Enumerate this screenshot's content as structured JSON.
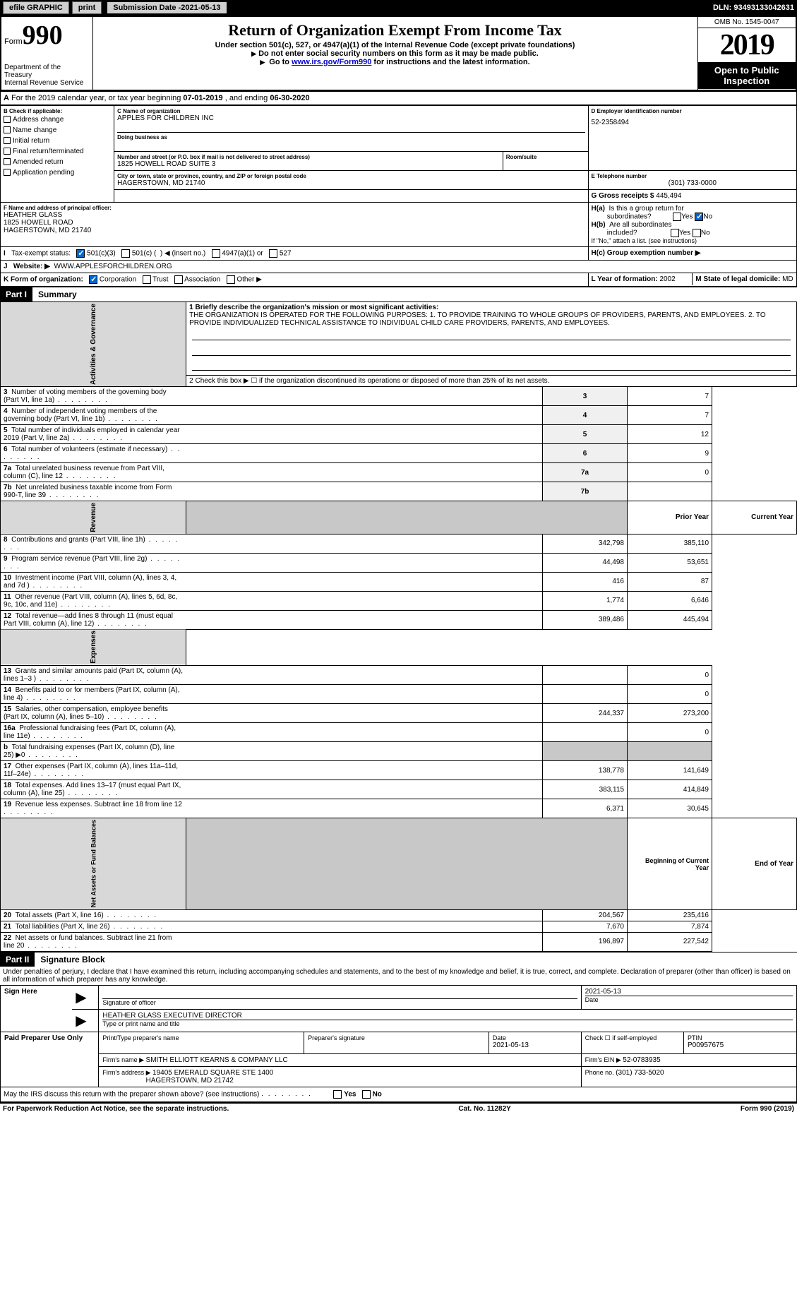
{
  "topbar": {
    "efile": "efile GRAPHIC",
    "print": "print",
    "subdate_lbl": "Submission Date - ",
    "subdate": "2021-05-13",
    "dln_lbl": "DLN: ",
    "dln": "93493133042631"
  },
  "header": {
    "form_lbl": "Form",
    "form_num": "990",
    "dept": "Department of the Treasury\nInternal Revenue Service",
    "title": "Return of Organization Exempt From Income Tax",
    "subtitle": "Under section 501(c), 527, or 4947(a)(1) of the Internal Revenue Code (except private foundations)",
    "instr1": "Do not enter social security numbers on this form as it may be made public.",
    "instr2_pre": "Go to ",
    "instr2_link": "www.irs.gov/Form990",
    "instr2_post": " for instructions and the latest information.",
    "omb": "OMB No. 1545-0047",
    "year": "2019",
    "otp": "Open to Public Inspection"
  },
  "period": {
    "a_pre": "For the 2019 calendar year, or tax year beginning ",
    "begin": "07-01-2019",
    "mid": " , and ending ",
    "end": "06-30-2020"
  },
  "sectionB": {
    "b_lbl": "B Check if applicable:",
    "b_opts": [
      "Address change",
      "Name change",
      "Initial return",
      "Final return/terminated",
      "Amended return",
      "Application pending"
    ],
    "c_lbl": "C Name of organization",
    "c_val": "APPLES FOR CHILDREN INC",
    "dba_lbl": "Doing business as",
    "addr_lbl": "Number and street (or P.O. box if mail is not delivered to street address)",
    "addr_val": "1825 HOWELL ROAD SUITE 3",
    "room_lbl": "Room/suite",
    "city_lbl": "City or town, state or province, country, and ZIP or foreign postal code",
    "city_val": "HAGERSTOWN, MD  21740",
    "d_lbl": "D Employer identification number",
    "d_val": "52-2358494",
    "e_lbl": "E Telephone number",
    "e_val": "(301) 733-0000",
    "g_lbl": "G Gross receipts $ ",
    "g_val": "445,494",
    "f_lbl": "F  Name and address of principal officer:",
    "f_name": "HEATHER GLASS",
    "f_addr1": "1825 HOWELL ROAD",
    "f_addr2": "HAGERSTOWN, MD  21740",
    "ha_lbl": "H(a)  Is this a group return for subordinates?",
    "hb_lbl": "H(b)  Are all subordinates included?",
    "hb_note": "If \"No,\" attach a list. (see instructions)",
    "hc_lbl": "H(c)  Group exemption number ▶",
    "yes": "Yes",
    "no": "No",
    "i_lbl": "Tax-exempt status:",
    "i_opts": [
      "501(c)(3)",
      "501(c) (  ) ◀ (insert no.)",
      "4947(a)(1) or",
      "527"
    ],
    "j_lbl": "Website: ▶",
    "j_val": "WWW.APPLESFORCHILDREN.ORG",
    "k_lbl": "K Form of organization:",
    "k_opts": [
      "Corporation",
      "Trust",
      "Association",
      "Other ▶"
    ],
    "l_lbl": "L Year of formation: ",
    "l_val": "2002",
    "m_lbl": "M State of legal domicile: ",
    "m_val": "MD"
  },
  "part1": {
    "hdr": "Part I",
    "title": "Summary",
    "sec_ag": "Activities & Governance",
    "sec_rev": "Revenue",
    "sec_exp": "Expenses",
    "sec_na": "Net Assets or Fund Balances",
    "l1_lbl": "1  Briefly describe the organization's mission or most significant activities:",
    "l1_val": "THE ORGANIZATION IS OPERATED FOR THE FOLLOWING PURPOSES: 1. TO PROVIDE TRAINING TO WHOLE GROUPS OF PROVIDERS, PARENTS, AND EMPLOYEES. 2. TO PROVIDE INDIVIDUALIZED TECHNICAL ASSISTANCE TO INDIVIDUAL CHILD CARE PROVIDERS, PARENTS, AND EMPLOYEES.",
    "l2": "2   Check this box ▶ ☐  if the organization discontinued its operations or disposed of more than 25% of its net assets.",
    "rows_ag": [
      {
        "n": "3",
        "t": "Number of voting members of the governing body (Part VI, line 1a)",
        "v": "7"
      },
      {
        "n": "4",
        "t": "Number of independent voting members of the governing body (Part VI, line 1b)",
        "v": "7"
      },
      {
        "n": "5",
        "t": "Total number of individuals employed in calendar year 2019 (Part V, line 2a)",
        "v": "12"
      },
      {
        "n": "6",
        "t": "Total number of volunteers (estimate if necessary)",
        "v": "9"
      },
      {
        "n": "7a",
        "t": "Total unrelated business revenue from Part VIII, column (C), line 12",
        "v": "0"
      },
      {
        "n": "7b",
        "t": "Net unrelated business taxable income from Form 990-T, line 39",
        "v": ""
      }
    ],
    "col_prior": "Prior Year",
    "col_curr": "Current Year",
    "rows_rev": [
      {
        "n": "8",
        "t": "Contributions and grants (Part VIII, line 1h)",
        "p": "342,798",
        "c": "385,110"
      },
      {
        "n": "9",
        "t": "Program service revenue (Part VIII, line 2g)",
        "p": "44,498",
        "c": "53,651"
      },
      {
        "n": "10",
        "t": "Investment income (Part VIII, column (A), lines 3, 4, and 7d )",
        "p": "416",
        "c": "87"
      },
      {
        "n": "11",
        "t": "Other revenue (Part VIII, column (A), lines 5, 6d, 8c, 9c, 10c, and 11e)",
        "p": "1,774",
        "c": "6,646"
      },
      {
        "n": "12",
        "t": "Total revenue—add lines 8 through 11 (must equal Part VIII, column (A), line 12)",
        "p": "389,486",
        "c": "445,494"
      }
    ],
    "rows_exp": [
      {
        "n": "13",
        "t": "Grants and similar amounts paid (Part IX, column (A), lines 1–3 )",
        "p": "",
        "c": "0"
      },
      {
        "n": "14",
        "t": "Benefits paid to or for members (Part IX, column (A), line 4)",
        "p": "",
        "c": "0"
      },
      {
        "n": "15",
        "t": "Salaries, other compensation, employee benefits (Part IX, column (A), lines 5–10)",
        "p": "244,337",
        "c": "273,200"
      },
      {
        "n": "16a",
        "t": "Professional fundraising fees (Part IX, column (A), line 11e)",
        "p": "",
        "c": "0"
      },
      {
        "n": "b",
        "t": "Total fundraising expenses (Part IX, column (D), line 25) ▶0",
        "p": "shade",
        "c": "shade"
      },
      {
        "n": "17",
        "t": "Other expenses (Part IX, column (A), lines 11a–11d, 11f–24e)",
        "p": "138,778",
        "c": "141,649"
      },
      {
        "n": "18",
        "t": "Total expenses. Add lines 13–17 (must equal Part IX, column (A), line 25)",
        "p": "383,115",
        "c": "414,849"
      },
      {
        "n": "19",
        "t": "Revenue less expenses. Subtract line 18 from line 12",
        "p": "6,371",
        "c": "30,645"
      }
    ],
    "col_boy": "Beginning of Current Year",
    "col_eoy": "End of Year",
    "rows_na": [
      {
        "n": "20",
        "t": "Total assets (Part X, line 16)",
        "p": "204,567",
        "c": "235,416"
      },
      {
        "n": "21",
        "t": "Total liabilities (Part X, line 26)",
        "p": "7,670",
        "c": "7,874"
      },
      {
        "n": "22",
        "t": "Net assets or fund balances. Subtract line 21 from line 20",
        "p": "196,897",
        "c": "227,542"
      }
    ]
  },
  "part2": {
    "hdr": "Part II",
    "title": "Signature Block",
    "perjury": "Under penalties of perjury, I declare that I have examined this return, including accompanying schedules and statements, and to the best of my knowledge and belief, it is true, correct, and complete. Declaration of preparer (other than officer) is based on all information of which preparer has any knowledge.",
    "sign_here": "Sign Here",
    "sig_officer": "Signature of officer",
    "sig_date": "Date",
    "sig_date_val": "2021-05-13",
    "sig_name": "HEATHER GLASS  EXECUTIVE DIRECTOR",
    "sig_name_lbl": "Type or print name and title",
    "paid": "Paid Preparer Use Only",
    "prep_name_lbl": "Print/Type preparer's name",
    "prep_sig_lbl": "Preparer's signature",
    "prep_date_lbl": "Date",
    "prep_date": "2021-05-13",
    "prep_check_lbl": "Check ☐ if self-employed",
    "ptin_lbl": "PTIN",
    "ptin": "P00957675",
    "firm_name_lbl": "Firm's name    ▶ ",
    "firm_name": "SMITH ELLIOTT KEARNS & COMPANY LLC",
    "firm_ein_lbl": "Firm's EIN ▶ ",
    "firm_ein": "52-0783935",
    "firm_addr_lbl": "Firm's address ▶ ",
    "firm_addr": "19405 EMERALD SQUARE STE 1400",
    "firm_city": "HAGERSTOWN, MD  21742",
    "firm_phone_lbl": "Phone no. ",
    "firm_phone": "(301) 733-5020",
    "discuss": "May the IRS discuss this return with the preparer shown above? (see instructions)"
  },
  "footer": {
    "pra": "For Paperwork Reduction Act Notice, see the separate instructions.",
    "cat": "Cat. No. 11282Y",
    "form": "Form 990 (2019)"
  }
}
